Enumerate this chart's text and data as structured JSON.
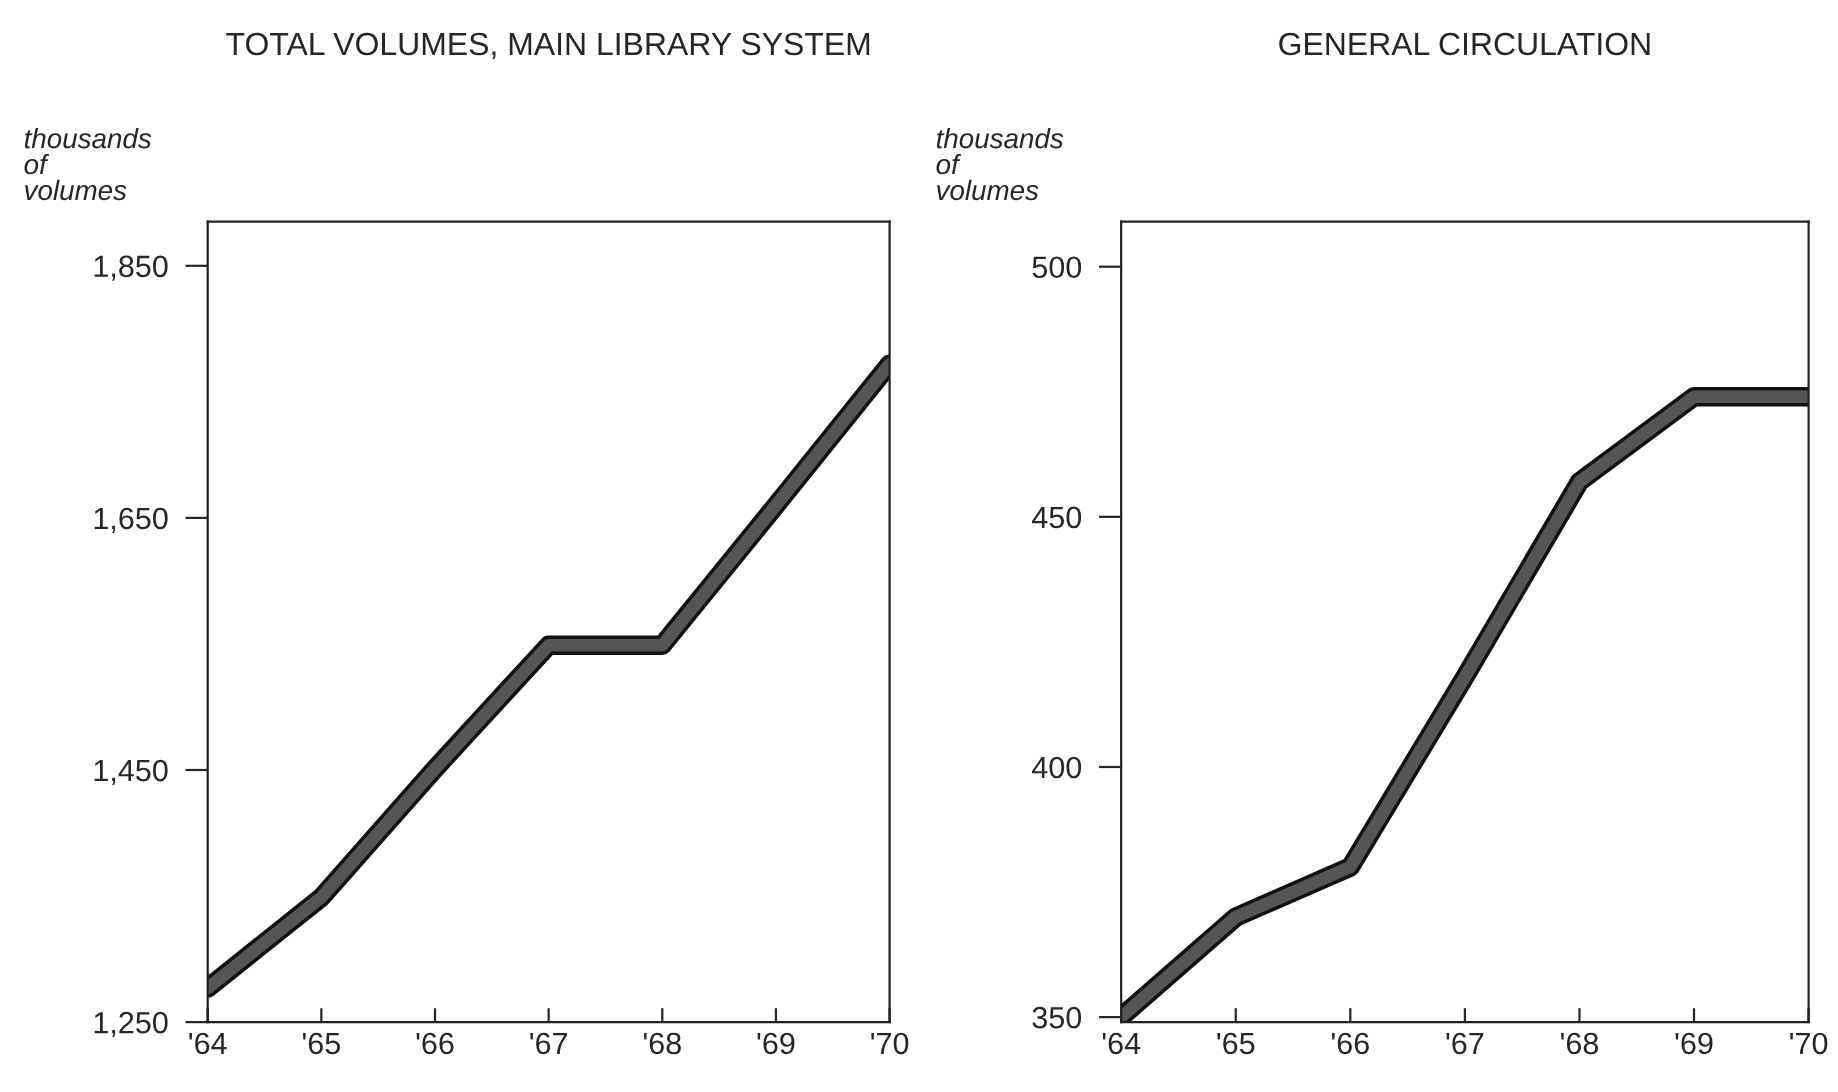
{
  "chart_data": [
    {
      "type": "line",
      "title": "TOTAL VOLUMES, MAIN LIBRARY SYSTEM",
      "ylabel": "thousands\nof\nvolumes",
      "categories": [
        "'64",
        "'65",
        "'66",
        "'67",
        "'68",
        "'69",
        "'70"
      ],
      "series": [
        {
          "color": "#555555",
          "values": [
            1277,
            1349,
            1451,
            1549,
            1549,
            1660,
            1772
          ]
        }
      ],
      "ylim": [
        1250,
        1885
      ],
      "yticks": [
        {
          "value": 1250,
          "label": "1,250"
        },
        {
          "value": 1450,
          "label": "1,450"
        },
        {
          "value": 1650,
          "label": "1,650"
        },
        {
          "value": 1850,
          "label": "1,850"
        }
      ],
      "grid": false
    },
    {
      "type": "line",
      "title": "GENERAL CIRCULATION",
      "ylabel": "thousands\nof\nvolumes",
      "categories": [
        "'64",
        "'65",
        "'66",
        "'67",
        "'68",
        "'69",
        "'70"
      ],
      "series": [
        {
          "color": "#555555",
          "values": [
            350,
            370,
            380,
            418,
            457,
            474,
            474
          ]
        }
      ],
      "ylim": [
        349,
        509
      ],
      "yticks": [
        350,
        400,
        450,
        500
      ],
      "grid": false
    }
  ]
}
